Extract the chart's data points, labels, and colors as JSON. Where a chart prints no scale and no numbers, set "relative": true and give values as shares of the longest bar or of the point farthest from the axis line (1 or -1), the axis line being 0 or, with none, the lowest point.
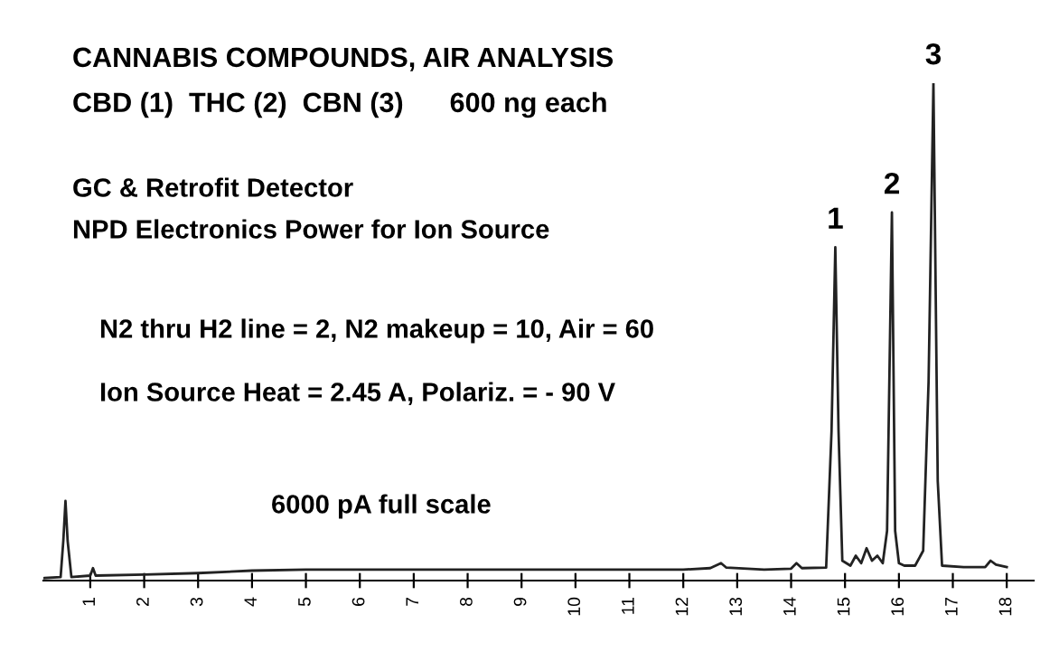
{
  "chart_data": {
    "type": "line",
    "relative": true,
    "title": "CANNABIS COMPOUNDS, AIR ANALYSIS",
    "subtitle": "CBD (1)  THC (2)  CBN (3)      600 ng each",
    "annotations": [
      "GC & Retrofit Detector",
      "NPD Electronics Power for Ion Source",
      "N2 thru H2 line = 2, N2 makeup = 10, Air = 60",
      "Ion Source Heat = 2.45 A, Polariz. = - 90 V",
      "6000 pA full scale",
      {
        "text": "1",
        "x": 14.82,
        "y": 0.67
      },
      {
        "text": "2",
        "x": 15.87,
        "y": 0.74
      },
      {
        "text": "3",
        "x": 16.64,
        "y": 1.0
      }
    ],
    "xlim": [
      0.13,
      18.5
    ],
    "xticks": [
      1,
      2,
      3,
      4,
      5,
      6,
      7,
      8,
      9,
      10,
      11,
      12,
      13,
      14,
      15,
      16,
      17,
      18
    ],
    "grid": false,
    "legend": false,
    "series": [
      {
        "color": "#222222",
        "x": [
          0.15,
          0.45,
          0.5,
          0.54,
          0.58,
          0.65,
          1.0,
          1.05,
          1.1,
          2.0,
          3.0,
          4.0,
          5.0,
          7.0,
          9.0,
          11.0,
          12.0,
          12.5,
          12.7,
          12.8,
          13.5,
          14.0,
          14.1,
          14.2,
          14.65,
          14.75,
          14.82,
          14.88,
          14.95,
          15.1,
          15.2,
          15.3,
          15.4,
          15.5,
          15.6,
          15.7,
          15.78,
          15.87,
          15.93,
          16.0,
          16.1,
          16.3,
          16.45,
          16.55,
          16.64,
          16.72,
          16.8,
          17.2,
          17.6,
          17.7,
          17.8,
          18.0
        ],
        "values": [
          0.005,
          0.007,
          0.08,
          0.16,
          0.08,
          0.007,
          0.01,
          0.025,
          0.01,
          0.012,
          0.015,
          0.02,
          0.022,
          0.022,
          0.022,
          0.022,
          0.022,
          0.025,
          0.035,
          0.026,
          0.022,
          0.024,
          0.035,
          0.025,
          0.026,
          0.3,
          0.67,
          0.3,
          0.04,
          0.03,
          0.05,
          0.035,
          0.065,
          0.04,
          0.05,
          0.035,
          0.1,
          0.74,
          0.1,
          0.035,
          0.03,
          0.03,
          0.06,
          0.4,
          1.0,
          0.2,
          0.03,
          0.027,
          0.027,
          0.04,
          0.032,
          0.027
        ]
      }
    ]
  }
}
